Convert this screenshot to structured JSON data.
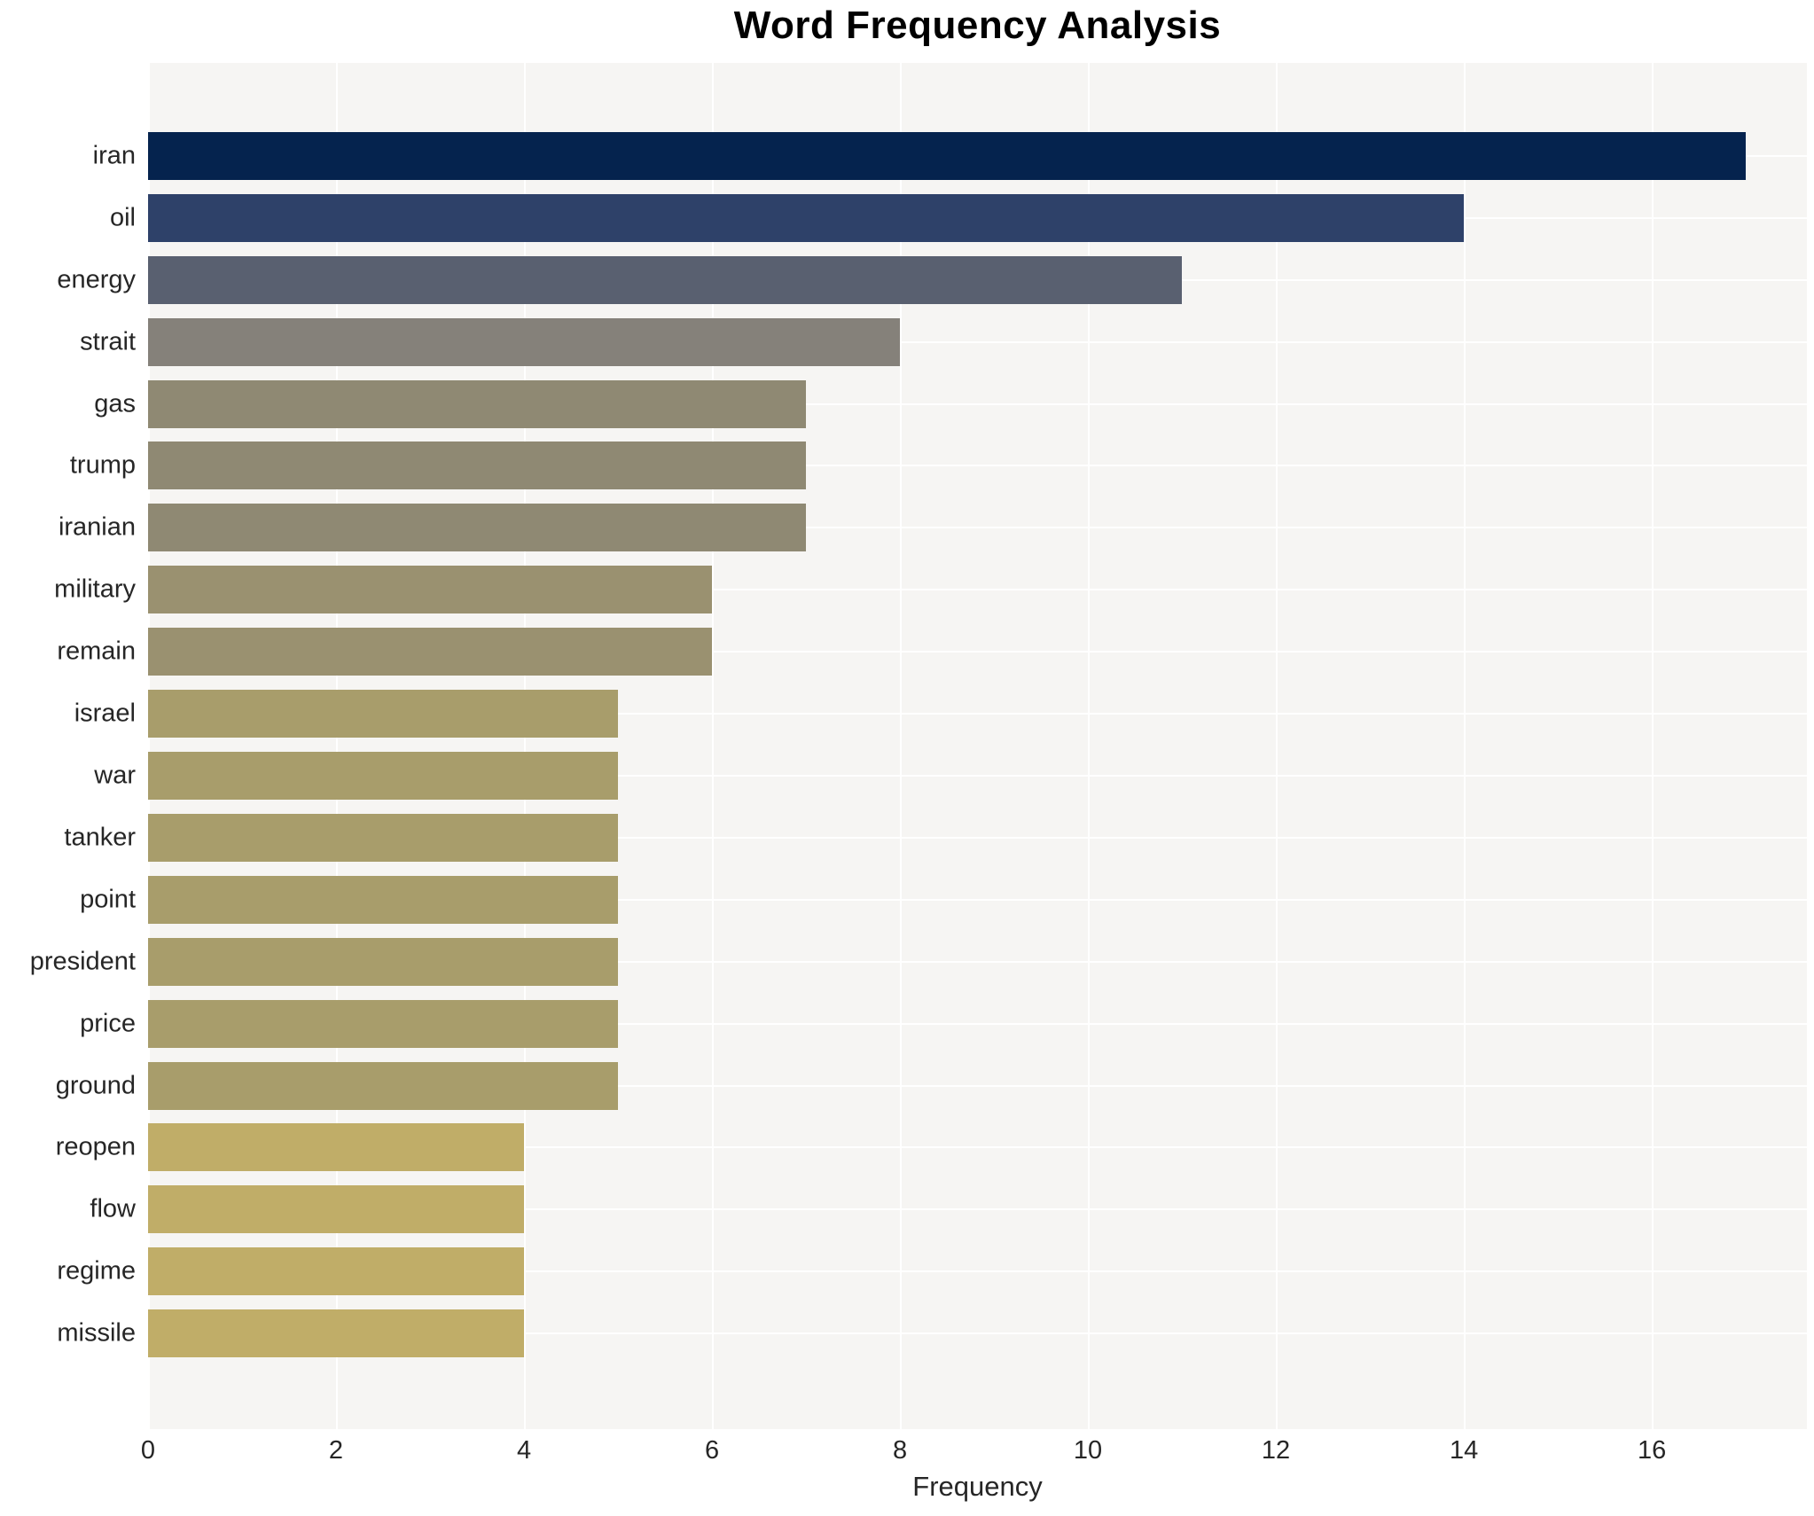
{
  "chart_data": {
    "type": "bar",
    "orientation": "horizontal",
    "title": "Word Frequency Analysis",
    "xlabel": "Frequency",
    "ylabel": "",
    "xlim": [
      0,
      17.65
    ],
    "xticks": [
      0,
      2,
      4,
      6,
      8,
      10,
      12,
      14,
      16
    ],
    "grid": true,
    "legend": "none",
    "plot_background": "#f6f5f3",
    "grid_color": "#ffffff",
    "categories": [
      "iran",
      "oil",
      "energy",
      "strait",
      "gas",
      "trump",
      "iranian",
      "military",
      "remain",
      "israel",
      "war",
      "tanker",
      "point",
      "president",
      "price",
      "ground",
      "reopen",
      "flow",
      "regime",
      "missile"
    ],
    "values": [
      17,
      14,
      11,
      8,
      7,
      7,
      7,
      6,
      6,
      5,
      5,
      5,
      5,
      5,
      5,
      5,
      4,
      4,
      4,
      4
    ],
    "bar_colors": [
      "#05234e",
      "#2e4169",
      "#596070",
      "#85817a",
      "#8f8973",
      "#8f8973",
      "#8f8973",
      "#9a9170",
      "#9a9170",
      "#a89d6b",
      "#a89d6b",
      "#a89d6b",
      "#a89d6b",
      "#a89d6b",
      "#a89d6b",
      "#a89d6b",
      "#c0ad68",
      "#c0ad68",
      "#c0ad68",
      "#c0ad68"
    ]
  }
}
